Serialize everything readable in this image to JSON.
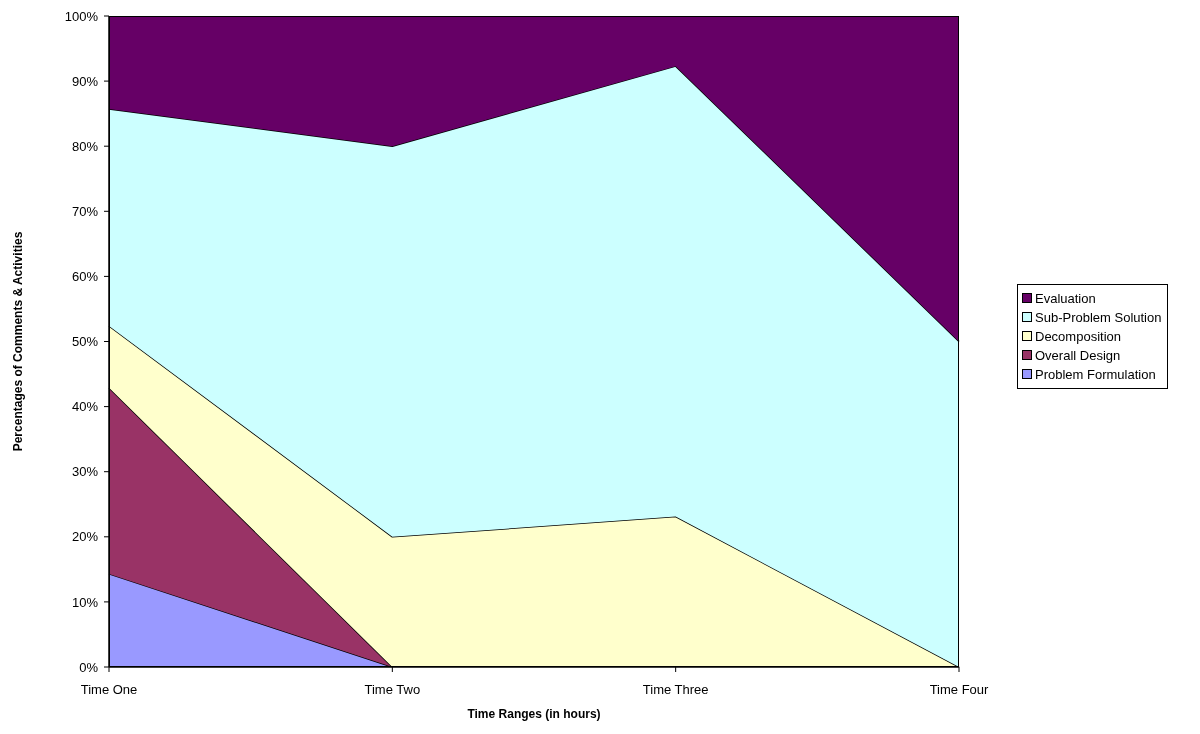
{
  "chart_data": {
    "type": "area",
    "stacked": true,
    "xlabel": "Time Ranges (in hours)",
    "ylabel": "Percentages of Comments & Activities",
    "categories": [
      "Time One",
      "Time Two",
      "Time Three",
      "Time Four"
    ],
    "series": [
      {
        "name": "Problem Formulation",
        "color": "#9999ff",
        "values": [
          14.3,
          0,
          0,
          0
        ]
      },
      {
        "name": "Overall Design",
        "color": "#993366",
        "values": [
          28.6,
          0,
          0,
          0
        ]
      },
      {
        "name": "Decomposition",
        "color": "#ffffcc",
        "values": [
          9.5,
          20,
          23.1,
          0
        ]
      },
      {
        "name": "Sub-Problem Solution",
        "color": "#ccffff",
        "values": [
          33.3,
          60,
          69.2,
          50
        ]
      },
      {
        "name": "Evaluation",
        "color": "#660066",
        "values": [
          14.3,
          20,
          7.7,
          50
        ]
      }
    ],
    "ylim": [
      0,
      100
    ],
    "yticks": [
      {
        "value": 0,
        "label": "0%"
      },
      {
        "value": 10,
        "label": "10%"
      },
      {
        "value": 20,
        "label": "20%"
      },
      {
        "value": 30,
        "label": "30%"
      },
      {
        "value": 40,
        "label": "40%"
      },
      {
        "value": 50,
        "label": "50%"
      },
      {
        "value": 60,
        "label": "60%"
      },
      {
        "value": 70,
        "label": "70%"
      },
      {
        "value": 80,
        "label": "80%"
      },
      {
        "value": 90,
        "label": "90%"
      },
      {
        "value": 100,
        "label": "100%"
      }
    ],
    "legend": "right"
  }
}
